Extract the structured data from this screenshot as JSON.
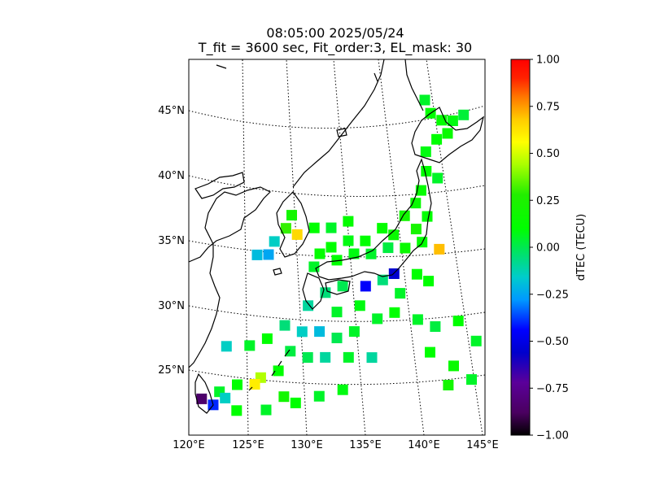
{
  "title": {
    "line1": "08:05:00 2025/05/24",
    "line2": "T_fit = 3600 sec, Fit_order:3, EL_mask: 30"
  },
  "chart_data": {
    "type": "heatmap",
    "title": "08:05:00 2025/05/24",
    "subtitle": "T_fit = 3600 sec, Fit_order:3, EL_mask: 30",
    "projection": "conic map",
    "lon_range": [
      120,
      145
    ],
    "lat_range": [
      20,
      49
    ],
    "x_ticks": [
      {
        "value": 120,
        "label": "120°E"
      },
      {
        "value": 125,
        "label": "125°E"
      },
      {
        "value": 130,
        "label": "130°E"
      },
      {
        "value": 135,
        "label": "135°E"
      },
      {
        "value": 140,
        "label": "140°E"
      },
      {
        "value": 145,
        "label": "145°E"
      }
    ],
    "y_ticks": [
      {
        "value": 25,
        "label": "25°N"
      },
      {
        "value": 30,
        "label": "30°N"
      },
      {
        "value": 35,
        "label": "35°N"
      },
      {
        "value": 40,
        "label": "40°N"
      },
      {
        "value": 45,
        "label": "45°N"
      }
    ],
    "graticule": "dotted",
    "colorbar": {
      "label": "dTEC (TECU)",
      "range": [
        -1.0,
        1.0
      ],
      "colormap": "nipy_spectral-like",
      "ticks": [
        {
          "value": 1.0,
          "label": "1.00"
        },
        {
          "value": 0.75,
          "label": "0.75"
        },
        {
          "value": 0.5,
          "label": "0.50"
        },
        {
          "value": 0.25,
          "label": "0.25"
        },
        {
          "value": 0.0,
          "label": "0.00"
        },
        {
          "value": -0.25,
          "label": "−0.25"
        },
        {
          "value": -0.5,
          "label": "−0.50"
        },
        {
          "value": -0.75,
          "label": "−0.75"
        },
        {
          "value": -1.0,
          "label": "−1.00"
        }
      ]
    },
    "cells": [
      {
        "lon": 140.5,
        "lat": 45.5,
        "value": 0.05
      },
      {
        "lon": 141.0,
        "lat": 44.5,
        "value": 0.1
      },
      {
        "lon": 142.0,
        "lat": 44.0,
        "value": 0.12
      },
      {
        "lon": 143.0,
        "lat": 44.0,
        "value": 0.08
      },
      {
        "lon": 144.0,
        "lat": 44.5,
        "value": 0.03
      },
      {
        "lon": 142.5,
        "lat": 43.0,
        "value": 0.15
      },
      {
        "lon": 141.5,
        "lat": 42.5,
        "value": 0.1
      },
      {
        "lon": 140.5,
        "lat": 41.5,
        "value": 0.08
      },
      {
        "lon": 140.5,
        "lat": 40.0,
        "value": 0.1
      },
      {
        "lon": 141.5,
        "lat": 39.5,
        "value": 0.05
      },
      {
        "lon": 140.0,
        "lat": 38.5,
        "value": 0.12
      },
      {
        "lon": 139.5,
        "lat": 37.5,
        "value": 0.15
      },
      {
        "lon": 138.5,
        "lat": 36.5,
        "value": 0.2
      },
      {
        "lon": 140.5,
        "lat": 36.5,
        "value": 0.1
      },
      {
        "lon": 139.5,
        "lat": 35.5,
        "value": 0.22
      },
      {
        "lon": 141.5,
        "lat": 34.0,
        "value": 0.7
      },
      {
        "lon": 137.5,
        "lat": 35.0,
        "value": 0.15
      },
      {
        "lon": 136.5,
        "lat": 35.5,
        "value": 0.12
      },
      {
        "lon": 135.0,
        "lat": 34.5,
        "value": 0.1
      },
      {
        "lon": 133.5,
        "lat": 34.5,
        "value": 0.08
      },
      {
        "lon": 132.0,
        "lat": 34.0,
        "value": 0.1
      },
      {
        "lon": 131.0,
        "lat": 33.5,
        "value": 0.12
      },
      {
        "lon": 130.5,
        "lat": 32.5,
        "value": 0.05
      },
      {
        "lon": 132.5,
        "lat": 33.0,
        "value": 0.1
      },
      {
        "lon": 134.0,
        "lat": 33.5,
        "value": 0.08
      },
      {
        "lon": 135.5,
        "lat": 33.5,
        "value": 0.05
      },
      {
        "lon": 137.0,
        "lat": 34.0,
        "value": 0.02
      },
      {
        "lon": 138.5,
        "lat": 34.0,
        "value": 0.15
      },
      {
        "lon": 140.0,
        "lat": 34.5,
        "value": 0.1
      },
      {
        "lon": 137.5,
        "lat": 32.0,
        "value": -0.55
      },
      {
        "lon": 139.5,
        "lat": 32.0,
        "value": 0.1
      },
      {
        "lon": 136.5,
        "lat": 31.5,
        "value": -0.05
      },
      {
        "lon": 135.0,
        "lat": 31.0,
        "value": -0.45
      },
      {
        "lon": 138.0,
        "lat": 30.5,
        "value": 0.05
      },
      {
        "lon": 140.5,
        "lat": 31.5,
        "value": 0.1
      },
      {
        "lon": 133.0,
        "lat": 31.0,
        "value": 0.0
      },
      {
        "lon": 131.5,
        "lat": 30.5,
        "value": -0.05
      },
      {
        "lon": 130.0,
        "lat": 29.5,
        "value": -0.1
      },
      {
        "lon": 132.5,
        "lat": 29.0,
        "value": 0.05
      },
      {
        "lon": 134.5,
        "lat": 29.5,
        "value": 0.08
      },
      {
        "lon": 136.0,
        "lat": 28.5,
        "value": 0.05
      },
      {
        "lon": 137.5,
        "lat": 29.0,
        "value": 0.1
      },
      {
        "lon": 139.5,
        "lat": 28.5,
        "value": 0.05
      },
      {
        "lon": 141.0,
        "lat": 28.0,
        "value": 0.02
      },
      {
        "lon": 143.0,
        "lat": 28.5,
        "value": 0.1
      },
      {
        "lon": 144.5,
        "lat": 27.0,
        "value": 0.05
      },
      {
        "lon": 128.0,
        "lat": 28.0,
        "value": -0.05
      },
      {
        "lon": 129.5,
        "lat": 27.5,
        "value": -0.15
      },
      {
        "lon": 131.0,
        "lat": 27.5,
        "value": -0.2
      },
      {
        "lon": 132.5,
        "lat": 27.0,
        "value": 0.0
      },
      {
        "lon": 134.0,
        "lat": 27.5,
        "value": 0.05
      },
      {
        "lon": 126.5,
        "lat": 27.0,
        "value": 0.1
      },
      {
        "lon": 125.0,
        "lat": 26.5,
        "value": 0.05
      },
      {
        "lon": 123.0,
        "lat": 26.5,
        "value": -0.15
      },
      {
        "lon": 128.5,
        "lat": 26.0,
        "value": 0.02
      },
      {
        "lon": 130.0,
        "lat": 25.5,
        "value": 0.0
      },
      {
        "lon": 131.5,
        "lat": 25.5,
        "value": -0.1
      },
      {
        "lon": 133.5,
        "lat": 25.5,
        "value": 0.05
      },
      {
        "lon": 135.5,
        "lat": 25.5,
        "value": -0.1
      },
      {
        "lon": 127.5,
        "lat": 24.5,
        "value": 0.1
      },
      {
        "lon": 126.0,
        "lat": 24.0,
        "value": 0.45
      },
      {
        "lon": 125.5,
        "lat": 23.5,
        "value": 0.6
      },
      {
        "lon": 124.0,
        "lat": 23.5,
        "value": 0.1
      },
      {
        "lon": 122.5,
        "lat": 23.0,
        "value": 0.05
      },
      {
        "lon": 121.0,
        "lat": 22.5,
        "value": -0.85
      },
      {
        "lon": 122.0,
        "lat": 22.0,
        "value": -0.4
      },
      {
        "lon": 123.0,
        "lat": 22.5,
        "value": -0.15
      },
      {
        "lon": 124.0,
        "lat": 21.5,
        "value": 0.1
      },
      {
        "lon": 126.5,
        "lat": 21.5,
        "value": 0.05
      },
      {
        "lon": 129.0,
        "lat": 22.0,
        "value": 0.1
      },
      {
        "lon": 131.0,
        "lat": 22.5,
        "value": 0.05
      },
      {
        "lon": 133.0,
        "lat": 23.0,
        "value": 0.08
      },
      {
        "lon": 128.0,
        "lat": 22.5,
        "value": 0.2
      },
      {
        "lon": 127.0,
        "lat": 34.5,
        "value": -0.15
      },
      {
        "lon": 126.5,
        "lat": 33.5,
        "value": -0.25
      },
      {
        "lon": 128.0,
        "lat": 35.5,
        "value": 0.3
      },
      {
        "lon": 128.5,
        "lat": 36.5,
        "value": 0.2
      },
      {
        "lon": 129.0,
        "lat": 35.0,
        "value": 0.65
      },
      {
        "lon": 125.5,
        "lat": 33.5,
        "value": -0.2
      },
      {
        "lon": 130.5,
        "lat": 35.5,
        "value": 0.1
      },
      {
        "lon": 132.0,
        "lat": 35.5,
        "value": 0.05
      },
      {
        "lon": 133.5,
        "lat": 36.0,
        "value": 0.12
      },
      {
        "lon": 140.5,
        "lat": 26.0,
        "value": 0.1
      },
      {
        "lon": 142.5,
        "lat": 25.0,
        "value": 0.15
      },
      {
        "lon": 142.0,
        "lat": 23.5,
        "value": 0.2
      },
      {
        "lon": 144.0,
        "lat": 24.0,
        "value": 0.05
      }
    ]
  }
}
